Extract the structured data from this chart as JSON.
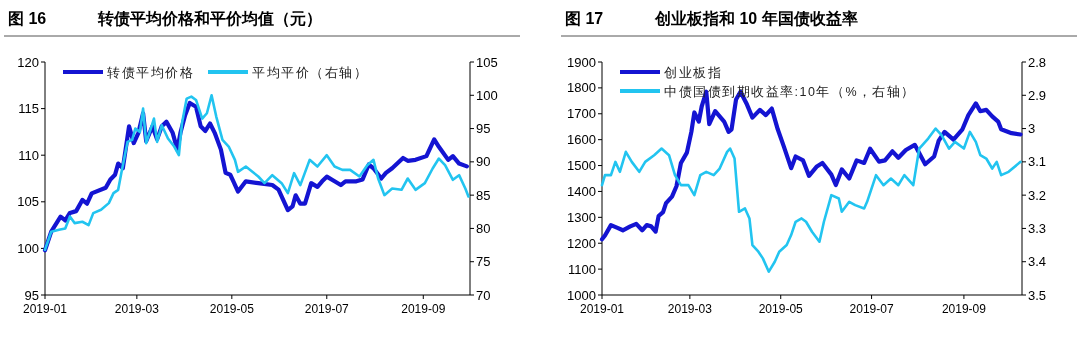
{
  "chart_data": [
    {
      "type": "line",
      "title": "图 16",
      "subtitle": "转债平均价格和平价均值（元）",
      "legend": "top left",
      "xlim": [
        "2019-01-01",
        "2019-10-01"
      ],
      "xticks": [
        "2019-01",
        "2019-03",
        "2019-05",
        "2019-07",
        "2019-09"
      ],
      "ylim": [
        95,
        120
      ],
      "yticks": [
        95,
        100,
        105,
        110,
        115,
        120
      ],
      "y2lim": [
        70,
        105
      ],
      "y2ticks": [
        70,
        75,
        80,
        85,
        90,
        95,
        100,
        105
      ],
      "series": [
        {
          "name": "转债平均价格",
          "color": "#1414d2",
          "x": [
            "2019-01-01",
            "2019-01-05",
            "2019-01-11",
            "2019-01-14",
            "2019-01-17",
            "2019-01-21",
            "2019-01-25",
            "2019-01-28",
            "2019-01-31",
            "2019-02-09",
            "2019-02-12",
            "2019-02-15",
            "2019-02-17",
            "2019-02-20",
            "2019-02-24",
            "2019-02-27",
            "2019-03-02",
            "2019-03-05",
            "2019-03-07",
            "2019-03-11",
            "2019-03-14",
            "2019-03-17",
            "2019-03-20",
            "2019-03-24",
            "2019-03-27",
            "2019-03-29",
            "2019-04-01",
            "2019-04-04",
            "2019-04-08",
            "2019-04-11",
            "2019-04-14",
            "2019-04-17",
            "2019-04-20",
            "2019-04-24",
            "2019-04-27",
            "2019-04-30",
            "2019-05-02",
            "2019-05-05",
            "2019-05-10",
            "2019-05-18",
            "2019-05-27",
            "2019-05-31",
            "2019-06-06",
            "2019-06-09",
            "2019-06-11",
            "2019-06-14",
            "2019-06-17",
            "2019-06-21",
            "2019-06-25",
            "2019-06-28",
            "2019-07-01",
            "2019-07-06",
            "2019-07-10",
            "2019-07-13",
            "2019-07-20",
            "2019-07-24",
            "2019-07-28",
            "2019-07-31",
            "2019-08-05",
            "2019-08-08",
            "2019-08-12",
            "2019-08-19",
            "2019-08-22",
            "2019-08-27",
            "2019-09-03",
            "2019-09-08",
            "2019-09-11",
            "2019-09-17",
            "2019-09-20",
            "2019-09-24",
            "2019-09-29"
          ],
          "values": [
            99.8,
            101.8,
            103.4,
            103.0,
            103.8,
            104.0,
            105.2,
            104.8,
            105.9,
            106.5,
            107.4,
            107.9,
            109.1,
            108.6,
            113.1,
            111.3,
            112.4,
            114.5,
            111.5,
            113.1,
            111.7,
            113.1,
            113.6,
            112.4,
            110.6,
            112.4,
            114.3,
            115.6,
            115.2,
            113.1,
            112.6,
            113.4,
            112.4,
            110.6,
            108.1,
            107.9,
            107.2,
            106.1,
            107.2,
            107.0,
            106.8,
            106.3,
            104.1,
            104.5,
            105.7,
            104.8,
            104.8,
            107.0,
            106.6,
            107.2,
            107.7,
            107.2,
            106.8,
            107.2,
            107.2,
            107.4,
            109.0,
            108.6,
            107.5,
            108.1,
            108.6,
            109.7,
            109.4,
            109.5,
            109.9,
            111.7,
            110.9,
            109.5,
            109.9,
            109.1,
            108.8
          ]
        },
        {
          "name": "平均平价（右轴）",
          "color": "#22c4f0",
          "axis": "y2",
          "x": [
            "2019-01-01",
            "2019-01-05",
            "2019-01-10",
            "2019-01-14",
            "2019-01-17",
            "2019-01-20",
            "2019-01-25",
            "2019-01-29",
            "2019-02-01",
            "2019-02-06",
            "2019-02-11",
            "2019-02-14",
            "2019-02-17",
            "2019-02-19",
            "2019-02-23",
            "2019-02-26",
            "2019-02-28",
            "2019-03-03",
            "2019-03-05",
            "2019-03-07",
            "2019-03-12",
            "2019-03-14",
            "2019-03-17",
            "2019-03-21",
            "2019-03-25",
            "2019-03-28",
            "2019-03-30",
            "2019-04-02",
            "2019-04-05",
            "2019-04-08",
            "2019-04-12",
            "2019-04-15",
            "2019-04-18",
            "2019-04-21",
            "2019-04-25",
            "2019-04-29",
            "2019-05-03",
            "2019-05-05",
            "2019-05-10",
            "2019-05-18",
            "2019-05-22",
            "2019-05-27",
            "2019-06-02",
            "2019-06-06",
            "2019-06-10",
            "2019-06-14",
            "2019-06-20",
            "2019-06-25",
            "2019-07-01",
            "2019-07-06",
            "2019-07-11",
            "2019-07-16",
            "2019-07-22",
            "2019-07-27",
            "2019-07-31",
            "2019-08-03",
            "2019-08-07",
            "2019-08-12",
            "2019-08-18",
            "2019-08-22",
            "2019-08-27",
            "2019-09-02",
            "2019-09-07",
            "2019-09-11",
            "2019-09-15",
            "2019-09-20",
            "2019-09-24",
            "2019-09-28",
            "2019-09-30"
          ],
          "values": [
            76.8,
            79.5,
            79.8,
            80.0,
            81.8,
            80.8,
            81.0,
            80.5,
            82.3,
            82.8,
            83.8,
            85.3,
            85.8,
            88.3,
            93.0,
            93.3,
            95.0,
            94.5,
            98.0,
            92.8,
            96.5,
            93.0,
            95.5,
            93.5,
            92.3,
            91.0,
            95.8,
            99.5,
            99.8,
            99.3,
            96.5,
            97.3,
            100.0,
            96.8,
            93.3,
            92.3,
            90.3,
            88.5,
            89.3,
            87.8,
            86.8,
            88.0,
            86.8,
            85.3,
            88.3,
            86.5,
            90.3,
            89.3,
            91.0,
            89.3,
            88.8,
            88.8,
            87.8,
            89.5,
            90.3,
            87.5,
            85.0,
            86.0,
            85.8,
            87.5,
            85.8,
            86.8,
            89.0,
            90.5,
            89.5,
            87.3,
            88.0,
            86.0,
            84.8
          ]
        }
      ]
    },
    {
      "type": "line",
      "title": "图 17",
      "subtitle": "创业板指和 10 年国债收益率",
      "legend": "top left",
      "xlim": [
        "2019-01-01",
        "2019-10-10"
      ],
      "xticks": [
        "2019-01",
        "2019-03",
        "2019-05",
        "2019-07",
        "2019-09"
      ],
      "ylim": [
        1000,
        1900
      ],
      "yticks": [
        1000,
        1100,
        1200,
        1300,
        1400,
        1500,
        1600,
        1700,
        1800,
        1900
      ],
      "y2lim": [
        3.5,
        2.8
      ],
      "y2ticks": [
        2.8,
        2.9,
        3,
        3.1,
        3.2,
        3.3,
        3.4,
        3.5
      ],
      "series": [
        {
          "name": "创业板指",
          "color": "#1414d2",
          "x": [
            "2019-01-01",
            "2019-01-03",
            "2019-01-07",
            "2019-01-11",
            "2019-01-15",
            "2019-01-20",
            "2019-01-24",
            "2019-01-28",
            "2019-01-31",
            "2019-02-03",
            "2019-02-06",
            "2019-02-08",
            "2019-02-11",
            "2019-02-13",
            "2019-02-17",
            "2019-02-20",
            "2019-02-23",
            "2019-02-27",
            "2019-03-02",
            "2019-03-04",
            "2019-03-07",
            "2019-03-09",
            "2019-03-12",
            "2019-03-14",
            "2019-03-18",
            "2019-03-21",
            "2019-03-24",
            "2019-03-27",
            "2019-03-29",
            "2019-04-01",
            "2019-04-04",
            "2019-04-08",
            "2019-04-12",
            "2019-04-17",
            "2019-04-21",
            "2019-04-25",
            "2019-04-29",
            "2019-05-03",
            "2019-05-08",
            "2019-05-11",
            "2019-05-16",
            "2019-05-20",
            "2019-05-25",
            "2019-05-29",
            "2019-06-04",
            "2019-06-07",
            "2019-06-11",
            "2019-06-16",
            "2019-06-21",
            "2019-06-26",
            "2019-06-30",
            "2019-07-06",
            "2019-07-10",
            "2019-07-15",
            "2019-07-19",
            "2019-07-24",
            "2019-07-30",
            "2019-08-06",
            "2019-08-12",
            "2019-08-15",
            "2019-08-19",
            "2019-08-25",
            "2019-08-31",
            "2019-09-04",
            "2019-09-09",
            "2019-09-12",
            "2019-09-16",
            "2019-09-20",
            "2019-09-24",
            "2019-09-26",
            "2019-10-03",
            "2019-10-09"
          ],
          "values": [
            1215,
            1230,
            1270,
            1260,
            1250,
            1265,
            1275,
            1250,
            1270,
            1265,
            1245,
            1305,
            1320,
            1355,
            1380,
            1420,
            1510,
            1550,
            1630,
            1705,
            1670,
            1730,
            1785,
            1660,
            1710,
            1690,
            1670,
            1630,
            1640,
            1755,
            1785,
            1740,
            1685,
            1715,
            1695,
            1720,
            1640,
            1575,
            1490,
            1535,
            1520,
            1460,
            1495,
            1510,
            1465,
            1425,
            1485,
            1450,
            1520,
            1510,
            1565,
            1515,
            1520,
            1555,
            1530,
            1560,
            1580,
            1505,
            1535,
            1595,
            1630,
            1600,
            1640,
            1695,
            1740,
            1710,
            1715,
            1690,
            1670,
            1640,
            1625,
            1620
          ]
        },
        {
          "name": "中债国债到期收益率:10年（%，右轴）",
          "color": "#22c4f0",
          "axis": "y2",
          "x": [
            "2019-01-01",
            "2019-01-03",
            "2019-01-07",
            "2019-01-10",
            "2019-01-13",
            "2019-01-17",
            "2019-01-21",
            "2019-01-26",
            "2019-01-30",
            "2019-02-05",
            "2019-02-10",
            "2019-02-15",
            "2019-02-19",
            "2019-02-23",
            "2019-02-28",
            "2019-03-04",
            "2019-03-08",
            "2019-03-12",
            "2019-03-17",
            "2019-03-21",
            "2019-03-26",
            "2019-03-28",
            "2019-03-31",
            "2019-04-03",
            "2019-04-07",
            "2019-04-10",
            "2019-04-12",
            "2019-04-16",
            "2019-04-19",
            "2019-04-23",
            "2019-04-27",
            "2019-04-30",
            "2019-05-05",
            "2019-05-08",
            "2019-05-11",
            "2019-05-15",
            "2019-05-18",
            "2019-05-22",
            "2019-05-27",
            "2019-05-30",
            "2019-06-04",
            "2019-06-09",
            "2019-06-11",
            "2019-06-16",
            "2019-06-20",
            "2019-06-26",
            "2019-06-28",
            "2019-07-04",
            "2019-07-09",
            "2019-07-14",
            "2019-07-19",
            "2019-07-23",
            "2019-07-29",
            "2019-08-02",
            "2019-08-08",
            "2019-08-13",
            "2019-08-17",
            "2019-08-22",
            "2019-08-26",
            "2019-09-01",
            "2019-09-05",
            "2019-09-09",
            "2019-09-12",
            "2019-09-16",
            "2019-09-20",
            "2019-09-23",
            "2019-09-26",
            "2019-10-01",
            "2019-10-09"
          ],
          "values": [
            3.17,
            3.14,
            3.14,
            3.1,
            3.13,
            3.07,
            3.1,
            3.13,
            3.1,
            3.08,
            3.06,
            3.08,
            3.14,
            3.17,
            3.17,
            3.2,
            3.14,
            3.13,
            3.14,
            3.12,
            3.07,
            3.06,
            3.09,
            3.25,
            3.24,
            3.27,
            3.35,
            3.37,
            3.39,
            3.43,
            3.4,
            3.37,
            3.35,
            3.32,
            3.28,
            3.27,
            3.28,
            3.31,
            3.34,
            3.28,
            3.2,
            3.21,
            3.25,
            3.22,
            3.23,
            3.24,
            3.22,
            3.14,
            3.17,
            3.15,
            3.17,
            3.14,
            3.17,
            3.06,
            3.03,
            3.0,
            3.02,
            3.06,
            3.04,
            3.06,
            3.01,
            3.04,
            3.08,
            3.09,
            3.12,
            3.1,
            3.14,
            3.13,
            3.1
          ]
        }
      ]
    }
  ]
}
